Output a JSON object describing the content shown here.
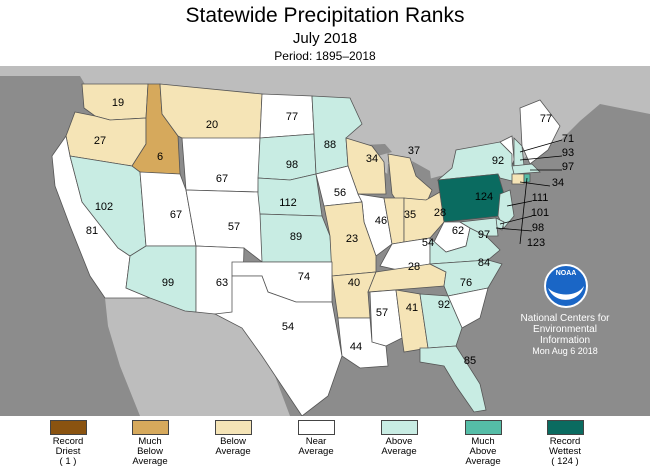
{
  "header": {
    "title": "Statewide Precipitation Ranks",
    "subtitle": "July 2018",
    "period": "Period: 1895–2018"
  },
  "credit": {
    "logo_text": "NOAA",
    "line1": "National Centers for",
    "line2": "Environmental",
    "line3": "Information",
    "date": "Mon Aug  6 2018"
  },
  "colors": {
    "background": "#8c8c8c",
    "canada_land": "#bdbdbd",
    "record_driest": "#8a5310",
    "much_below": "#d6a95c",
    "below": "#f5e4b6",
    "near": "#ffffff",
    "above": "#c8ece3",
    "much_above": "#55bda7",
    "record_wettest": "#0a6b60"
  },
  "legend": [
    {
      "lines": [
        "Record",
        "Driest",
        "( 1 )"
      ],
      "color": "#8a5310"
    },
    {
      "lines": [
        "Much",
        "Below",
        "Average"
      ],
      "color": "#d6a95c"
    },
    {
      "lines": [
        "Below",
        "Average"
      ],
      "color": "#f5e4b6"
    },
    {
      "lines": [
        "Near",
        "Average"
      ],
      "color": "#ffffff"
    },
    {
      "lines": [
        "Above",
        "Average"
      ],
      "color": "#c8ece3"
    },
    {
      "lines": [
        "Much",
        "Above",
        "Average"
      ],
      "color": "#55bda7"
    },
    {
      "lines": [
        "Record",
        "Wettest",
        "( 124 )"
      ],
      "color": "#0a6b60"
    }
  ],
  "states": [
    {
      "id": "WA",
      "rank": "19",
      "category": "below"
    },
    {
      "id": "OR",
      "rank": "27",
      "category": "below"
    },
    {
      "id": "ID",
      "rank": "6",
      "category": "much_below"
    },
    {
      "id": "MT",
      "rank": "20",
      "category": "below"
    },
    {
      "id": "WY",
      "rank": "67",
      "category": "near"
    },
    {
      "id": "ND",
      "rank": "77",
      "category": "near"
    },
    {
      "id": "SD",
      "rank": "98",
      "category": "above"
    },
    {
      "id": "MN",
      "rank": "88",
      "category": "above"
    },
    {
      "id": "WI",
      "rank": "34",
      "category": "below"
    },
    {
      "id": "MI",
      "rank": "37",
      "category": "below"
    },
    {
      "id": "NY",
      "rank": "92",
      "category": "above"
    },
    {
      "id": "ME",
      "rank": "77",
      "category": "near"
    },
    {
      "id": "CA",
      "rank": "81",
      "category": "near"
    },
    {
      "id": "NV",
      "rank": "102",
      "category": "above"
    },
    {
      "id": "UT",
      "rank": "67",
      "category": "near"
    },
    {
      "id": "CO",
      "rank": "57",
      "category": "near"
    },
    {
      "id": "NE",
      "rank": "112",
      "category": "above"
    },
    {
      "id": "IA",
      "rank": "56",
      "category": "near"
    },
    {
      "id": "IL",
      "rank": "46",
      "category": "near"
    },
    {
      "id": "IN",
      "rank": "35",
      "category": "below"
    },
    {
      "id": "OH",
      "rank": "28",
      "category": "below"
    },
    {
      "id": "PA",
      "rank": "124",
      "category": "record_wettest"
    },
    {
      "id": "KS",
      "rank": "89",
      "category": "above"
    },
    {
      "id": "MO",
      "rank": "23",
      "category": "below"
    },
    {
      "id": "KY",
      "rank": "54",
      "category": "near"
    },
    {
      "id": "WV",
      "rank": "62",
      "category": "near"
    },
    {
      "id": "VA",
      "rank": "97",
      "category": "above"
    },
    {
      "id": "AZ",
      "rank": "99",
      "category": "above"
    },
    {
      "id": "NM",
      "rank": "63",
      "category": "near"
    },
    {
      "id": "OK",
      "rank": "74",
      "category": "near"
    },
    {
      "id": "AR",
      "rank": "40",
      "category": "below"
    },
    {
      "id": "TN",
      "rank": "28",
      "category": "below"
    },
    {
      "id": "NC",
      "rank": "84",
      "category": "above"
    },
    {
      "id": "SC",
      "rank": "76",
      "category": "near"
    },
    {
      "id": "TX",
      "rank": "54",
      "category": "near"
    },
    {
      "id": "LA",
      "rank": "44",
      "category": "near"
    },
    {
      "id": "MS",
      "rank": "57",
      "category": "near"
    },
    {
      "id": "AL",
      "rank": "41",
      "category": "below"
    },
    {
      "id": "GA",
      "rank": "92",
      "category": "above"
    },
    {
      "id": "FL",
      "rank": "85",
      "category": "above"
    },
    {
      "id": "VT",
      "rank": "71",
      "category": "near"
    },
    {
      "id": "NH",
      "rank": "93",
      "category": "above"
    },
    {
      "id": "MA",
      "rank": "97",
      "category": "above"
    },
    {
      "id": "CT",
      "rank": "34",
      "category": "below"
    },
    {
      "id": "NJ",
      "rank": "111",
      "category": "above"
    },
    {
      "id": "DE",
      "rank": "101",
      "category": "above"
    },
    {
      "id": "MD",
      "rank": "98",
      "category": "above"
    },
    {
      "id": "RI",
      "rank": "123",
      "category": "much_above"
    }
  ]
}
